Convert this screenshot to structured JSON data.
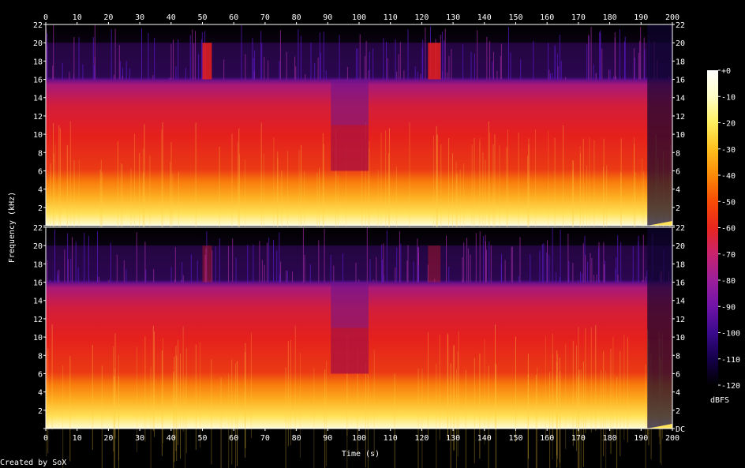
{
  "chart_data": {
    "type": "heatmap",
    "title": "",
    "xlabel": "Time (s)",
    "ylabel": "Frequency (kHz)",
    "xlim": [
      0,
      200
    ],
    "ylim": [
      0,
      22
    ],
    "x_ticks": [
      "0",
      "10",
      "20",
      "30",
      "40",
      "50",
      "60",
      "70",
      "80",
      "90",
      "100",
      "110",
      "120",
      "130",
      "140",
      "150",
      "160",
      "170",
      "180",
      "190",
      "200"
    ],
    "y_ticks_left": [
      "",
      "2",
      "4",
      "6",
      "8",
      "10",
      "12",
      "14",
      "16",
      "18",
      "20",
      "22"
    ],
    "y_ticks_right": [
      "DC",
      "2",
      "4",
      "6",
      "8",
      "10",
      "12",
      "14",
      "16",
      "18",
      "20",
      "22"
    ],
    "channels": [
      {
        "name": "",
        "lowpass_khz": 16,
        "bright_to_khz": 5.5
      },
      {
        "name": "",
        "lowpass_khz": 16,
        "bright_to_khz": 5.5
      }
    ],
    "colorbar": {
      "label": "dBFS",
      "range": [
        -120,
        0
      ],
      "ticks": [
        "+0",
        "-10",
        "-20",
        "-30",
        "-40",
        "-50",
        "-60",
        "-70",
        "-80",
        "-90",
        "-100",
        "-110",
        "-120"
      ],
      "colors": [
        "#000000",
        "#14004a",
        "#3a0a8c",
        "#6f14a8",
        "#9c1f9a",
        "#c8236e",
        "#e8261e",
        "#f64c06",
        "#fb8a08",
        "#fdc01e",
        "#fff060",
        "#ffffc8",
        "#ffffff"
      ]
    },
    "notable_segments": [
      {
        "from_s": 91,
        "to_s": 103,
        "description": "darker band"
      },
      {
        "from_s": 50,
        "to_s": 53,
        "description": "extends above 16 kHz"
      },
      {
        "from_s": 122,
        "to_s": 126,
        "description": "extends above 16 kHz"
      },
      {
        "from_s": 192,
        "to_s": 200,
        "description": "fade out"
      }
    ]
  },
  "footer": {
    "credit": "Created by SoX"
  }
}
